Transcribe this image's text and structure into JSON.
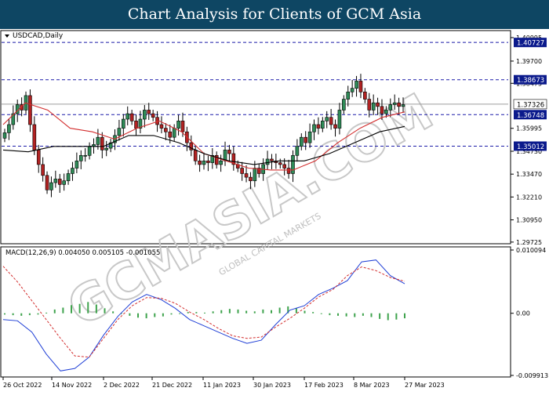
{
  "header": {
    "title": "Chart Analysis for Clients of GCM Asia"
  },
  "watermark": {
    "text": "GCMASIA.COM",
    "subtext": "GLOBAL CAPITAL MARKETS"
  },
  "colors": {
    "header_bg": "#0e4663",
    "bull_candle": "#2e8b57",
    "bear_candle": "#b22222",
    "ma_fast": "#d32f2f",
    "ma_slow": "#000000",
    "macd_line": "#1f3fd6",
    "signal_line": "#d32f2f",
    "histogram": "#3fa34d",
    "level_line": "#1a1aa8",
    "price_label_bg": "#0b1a8c"
  },
  "chart_data": [
    {
      "type": "candlestick",
      "symbol_label": "USDCAD,Daily",
      "ylim": [
        1.2972,
        1.4095
      ],
      "y_ticks": [
        "1.40995",
        "1.39700",
        "1.38475",
        "1.35995",
        "1.34730",
        "1.33470",
        "1.32210",
        "1.30950",
        "1.29725"
      ],
      "x_ticks": [
        "26 Oct 2022",
        "14 Nov 2022",
        "2 Dec 2022",
        "21 Dec 2022",
        "11 Jan 2023",
        "30 Jan 2023",
        "17 Feb 2023",
        "8 Mar 2023",
        "27 Mar 2023"
      ],
      "levels": [
        {
          "value": 1.40727,
          "label": "1.40727"
        },
        {
          "value": 1.38673,
          "label": "1.38673"
        },
        {
          "value": 1.36748,
          "label": "1.36748"
        },
        {
          "value": 1.35012,
          "label": "1.35012"
        }
      ],
      "current_price": {
        "value": 1.37326,
        "label": "1.37326"
      },
      "close_path": [
        1.3575,
        1.362,
        1.368,
        1.373,
        1.37,
        1.378,
        1.362,
        1.348,
        1.34,
        1.334,
        1.326,
        1.33,
        1.332,
        1.329,
        1.331,
        1.335,
        1.338,
        1.342,
        1.345,
        1.345,
        1.35,
        1.351,
        1.355,
        1.348,
        1.349,
        1.352,
        1.356,
        1.36,
        1.365,
        1.368,
        1.364,
        1.36,
        1.365,
        1.37,
        1.368,
        1.366,
        1.362,
        1.36,
        1.358,
        1.355,
        1.36,
        1.364,
        1.358,
        1.352,
        1.348,
        1.342,
        1.34,
        1.342,
        1.341,
        1.345,
        1.34,
        1.342,
        1.348,
        1.346,
        1.34,
        1.338,
        1.335,
        1.333,
        1.331,
        1.338,
        1.335,
        1.34,
        1.343,
        1.342,
        1.341,
        1.34,
        1.338,
        1.335,
        1.345,
        1.35,
        1.355,
        1.352,
        1.358,
        1.362,
        1.36,
        1.364,
        1.366,
        1.362,
        1.36,
        1.37,
        1.376,
        1.38,
        1.382,
        1.386,
        1.38,
        1.376,
        1.37,
        1.374,
        1.372,
        1.368,
        1.37,
        1.373,
        1.374,
        1.372,
        1.373
      ],
      "ma_fast": [
        1.362,
        1.374,
        1.37,
        1.36,
        1.358,
        1.354,
        1.36,
        1.364,
        1.358,
        1.346,
        1.342,
        1.338,
        1.337,
        1.337,
        1.342,
        1.352,
        1.36,
        1.366,
        1.369
      ],
      "ma_slow": [
        1.348,
        1.347,
        1.35,
        1.35,
        1.35,
        1.356,
        1.356,
        1.352,
        1.346,
        1.342,
        1.34,
        1.342,
        1.342,
        1.346,
        1.352,
        1.358,
        1.361
      ]
    },
    {
      "type": "line",
      "indicator_label": "MACD(12,26,9) 0.004050 0.005105 -0.001055",
      "ylim": [
        -0.009913,
        0.010094
      ],
      "y_ticks": [
        "0.010094",
        "0.00",
        "-0.009913"
      ],
      "series": [
        {
          "name": "MACD",
          "values": [
            -0.001,
            -0.0012,
            -0.003,
            -0.0065,
            -0.0092,
            -0.0088,
            -0.007,
            -0.0035,
            -0.0005,
            0.0018,
            0.003,
            0.0022,
            0.0008,
            -0.001,
            -0.002,
            -0.003,
            -0.004,
            -0.0048,
            -0.0043,
            -0.0018,
            0.0005,
            0.0012,
            0.003,
            0.004,
            0.0052,
            0.0082,
            0.0085,
            0.006,
            0.0047
          ]
        },
        {
          "name": "Signal",
          "values": [
            0.0075,
            0.005,
            0.002,
            -0.001,
            -0.004,
            -0.0068,
            -0.007,
            -0.004,
            -0.001,
            0.0012,
            0.0025,
            0.0024,
            0.0016,
            0.0002,
            -0.001,
            -0.0024,
            -0.0036,
            -0.004,
            -0.0038,
            -0.0022,
            -0.0008,
            0.0008,
            0.0026,
            0.0038,
            0.006,
            0.0074,
            0.0068,
            0.0057,
            0.0051
          ]
        },
        {
          "name": "Histogram",
          "values": [
            -0.0002,
            -0.0003,
            -0.0004,
            -0.0003,
            -0.0002,
            0.0001,
            0.0006,
            0.0009,
            0.0013,
            0.0015,
            0.0018,
            0.0014,
            0.0008,
            0.0003,
            -0.0001,
            -0.0004,
            -0.0007,
            -0.0008,
            -0.0006,
            -0.0005,
            -0.0002,
            -0.0001,
            0.0002,
            0.0002,
            0.0001,
            0.0003,
            0.0005,
            0.0007,
            0.0006,
            0.0004,
            0.0003,
            0.0006,
            0.0005,
            0.0009,
            0.0011,
            0.0008,
            0.0004,
            0.0002,
            0.0,
            -0.0003,
            -0.0004,
            -0.0005,
            -0.0006,
            -0.0004,
            -0.0006,
            -0.0009,
            -0.0011,
            -0.001,
            -0.0008
          ]
        }
      ]
    }
  ]
}
